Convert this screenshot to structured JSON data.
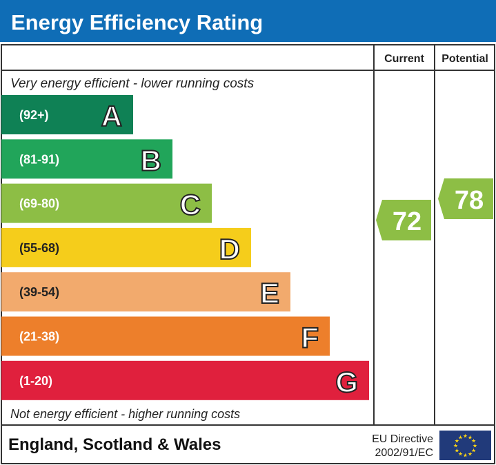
{
  "title": "Energy Efficiency Rating",
  "colors": {
    "title_bar": "#0f6db6",
    "frame": "#333333",
    "eu_flag": "#213a7a",
    "eu_stars": "#f7d117"
  },
  "chart_data": {
    "type": "bar",
    "columns": {
      "current": "Current",
      "potential": "Potential"
    },
    "top_note": "Very energy efficient - lower running costs",
    "bottom_note": "Not energy efficient - higher running costs",
    "bands": [
      {
        "letter": "A",
        "range": "(92+)",
        "min": 92,
        "max": 100,
        "color": "#0f8155"
      },
      {
        "letter": "B",
        "range": "(81-91)",
        "min": 81,
        "max": 91,
        "color": "#21a55a"
      },
      {
        "letter": "C",
        "range": "(69-80)",
        "min": 69,
        "max": 80,
        "color": "#8dbe45"
      },
      {
        "letter": "D",
        "range": "(55-68)",
        "min": 55,
        "max": 68,
        "color": "#f5cd1b"
      },
      {
        "letter": "E",
        "range": "(39-54)",
        "min": 39,
        "max": 54,
        "color": "#f2aa6d"
      },
      {
        "letter": "F",
        "range": "(21-38)",
        "min": 21,
        "max": 38,
        "color": "#ed7f2b"
      },
      {
        "letter": "G",
        "range": "(1-20)",
        "min": 1,
        "max": 20,
        "color": "#e0203d"
      }
    ],
    "current": {
      "value": 72,
      "band": "C",
      "color": "#8dbe45"
    },
    "potential": {
      "value": 78,
      "band": "C",
      "color": "#8dbe45"
    }
  },
  "footer": {
    "region": "England, Scotland & Wales",
    "directive_line1": "EU Directive",
    "directive_line2": "2002/91/EC"
  }
}
